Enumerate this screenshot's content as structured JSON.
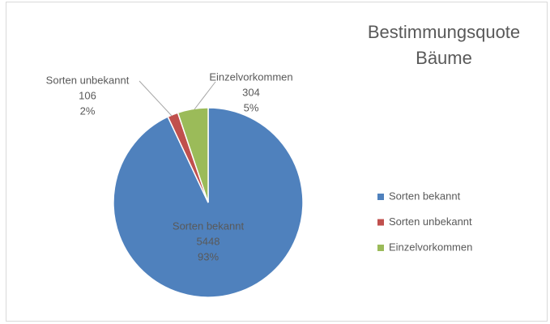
{
  "chart_data": {
    "type": "pie",
    "title": "Bestimmungsquote Bäume",
    "categories": [
      "Sorten bekannt",
      "Sorten unbekannt",
      "Einzelvorkommen"
    ],
    "values": [
      5448,
      106,
      304
    ],
    "percentages": [
      {
        "value": 93,
        "label": "93%"
      },
      {
        "value": 2,
        "label": "2%"
      },
      {
        "value": 5,
        "label": "5%"
      }
    ],
    "colors": [
      "#4f81bd",
      "#c0504d",
      "#9bbb59"
    ],
    "legend": "right"
  }
}
